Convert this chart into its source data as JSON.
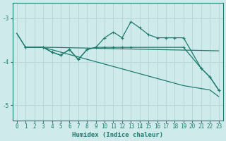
{
  "xlabel": "Humidex (Indice chaleur)",
  "bg_color": "#ceeaea",
  "line_color": "#1e7b6e",
  "grid_color": "#b8d8d8",
  "xlim": [
    -0.5,
    23.5
  ],
  "ylim": [
    -5.35,
    -2.65
  ],
  "yticks": [
    -5,
    -4,
    -3
  ],
  "xticks": [
    0,
    1,
    2,
    3,
    4,
    5,
    6,
    7,
    8,
    9,
    10,
    11,
    12,
    13,
    14,
    15,
    16,
    17,
    18,
    19,
    20,
    21,
    22,
    23
  ],
  "series": [
    {
      "x": [
        0,
        1,
        3,
        4,
        23
      ],
      "y": [
        -3.35,
        -3.67,
        -3.67,
        -3.67,
        -3.75
      ],
      "marker": false
    },
    {
      "x": [
        0,
        1,
        3,
        19,
        22,
        23
      ],
      "y": [
        -3.35,
        -3.67,
        -3.67,
        -4.55,
        -4.65,
        -4.8
      ],
      "marker": false
    },
    {
      "x": [
        1,
        3,
        4,
        5,
        6,
        7,
        8,
        9,
        10,
        11,
        12,
        13,
        19,
        21,
        22,
        23
      ],
      "y": [
        -3.67,
        -3.67,
        -3.78,
        -3.85,
        -3.72,
        -3.95,
        -3.72,
        -3.67,
        -3.67,
        -3.67,
        -3.67,
        -3.67,
        -3.67,
        -4.15,
        -4.35,
        -4.65
      ],
      "marker": true
    },
    {
      "x": [
        1,
        3,
        4,
        5,
        6,
        7,
        8,
        9,
        10,
        11,
        12,
        13,
        14,
        15,
        16,
        17,
        18,
        19,
        21,
        22,
        23
      ],
      "y": [
        -3.67,
        -3.67,
        -3.78,
        -3.85,
        -3.72,
        -3.95,
        -3.72,
        -3.67,
        -3.45,
        -3.32,
        -3.45,
        -3.08,
        -3.22,
        -3.38,
        -3.45,
        -3.45,
        -3.45,
        -3.45,
        -4.15,
        -4.35,
        -4.65
      ],
      "marker": true
    }
  ]
}
